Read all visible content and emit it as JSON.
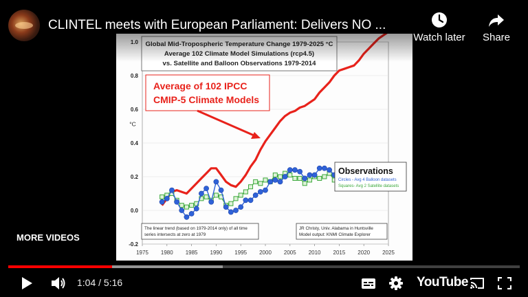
{
  "header": {
    "title": "CLINTEL meets with European Parliament: Delivers NO ...",
    "watch_later_label": "Watch later",
    "share_label": "Share",
    "avatar_icon": "channel-avatar"
  },
  "slide": {
    "heading_lines": [
      "Global Mid-Tropospheric Temperature Change 1979-2025 °C",
      "Average 102 Climate Model Simulations (rcp4.5)",
      "vs. Satellite and Balloon Observations 1979-2014"
    ],
    "callout_lines": [
      "Average of 102 IPCC",
      "CMIP-5 Climate Models"
    ],
    "callout_color": "#e8221b",
    "observations_title": "Observations",
    "circles_note": "Circles - Avg 4 Balloon datasets",
    "squares_note": "Squares- Avg 2 Satellite datasets",
    "trend_note_lines": [
      "The linear trend (based on 1979-2014 only) of all time",
      "series intersects at zero at 1979"
    ],
    "credit_lines": [
      "JR Christy, Univ. Alabama in Huntsville",
      "Model output: KNMI Climate Explorer"
    ]
  },
  "chart_data": {
    "type": "line",
    "ylabel": "°C",
    "xlim": [
      1975,
      2025
    ],
    "ylim": [
      -0.2,
      1.0
    ],
    "x_ticks": [
      "1975",
      "1980",
      "1985",
      "1990",
      "1995",
      "2000",
      "2005",
      "2010",
      "2015",
      "2020",
      "2025"
    ],
    "y_ticks": [
      "1.0",
      "0.8",
      "0.6",
      "0.4",
      "0.2",
      "0.0",
      "-0.2"
    ],
    "series": [
      {
        "color": "#e8221b",
        "x": [
          1979,
          1980,
          1981,
          1982,
          1983,
          1984,
          1985,
          1986,
          1987,
          1988,
          1989,
          1990,
          1991,
          1992,
          1993,
          1994,
          1995,
          1996,
          1997,
          1998,
          1999,
          2000,
          2001,
          2002,
          2003,
          2004,
          2005,
          2006,
          2007,
          2008,
          2009,
          2010,
          2011,
          2012,
          2013,
          2014,
          2015,
          2016,
          2017,
          2018,
          2019,
          2020,
          2021,
          2022,
          2023,
          2024,
          2025
        ],
        "values": [
          0.03,
          0.07,
          0.11,
          0.12,
          0.11,
          0.1,
          0.13,
          0.16,
          0.19,
          0.22,
          0.25,
          0.25,
          0.21,
          0.17,
          0.15,
          0.14,
          0.17,
          0.21,
          0.26,
          0.3,
          0.36,
          0.41,
          0.45,
          0.49,
          0.53,
          0.56,
          0.58,
          0.59,
          0.61,
          0.62,
          0.64,
          0.66,
          0.7,
          0.73,
          0.76,
          0.8,
          0.83,
          0.84,
          0.85,
          0.86,
          0.89,
          0.93,
          0.96,
          0.99,
          1.02,
          1.04,
          1.06
        ]
      },
      {
        "name": "Circles - Avg 4 Balloon datasets",
        "color": "#2f62d8",
        "x": [
          1979,
          1980,
          1981,
          1982,
          1983,
          1984,
          1985,
          1986,
          1987,
          1988,
          1989,
          1990,
          1991,
          1992,
          1993,
          1994,
          1995,
          1996,
          1997,
          1998,
          1999,
          2000,
          2001,
          2002,
          2003,
          2004,
          2005,
          2006,
          2007,
          2008,
          2009,
          2010,
          2011,
          2012,
          2013,
          2014,
          2015
        ],
        "values": [
          0.05,
          0.07,
          0.12,
          0.05,
          0.0,
          -0.04,
          -0.02,
          0.01,
          0.1,
          0.13,
          0.05,
          0.17,
          0.12,
          0.02,
          -0.01,
          0.0,
          0.02,
          0.06,
          0.06,
          0.09,
          0.11,
          0.12,
          0.17,
          0.18,
          0.17,
          0.2,
          0.24,
          0.24,
          0.23,
          0.19,
          0.21,
          0.21,
          0.25,
          0.25,
          0.24,
          0.21,
          0.2
        ]
      },
      {
        "name": "Squares- Avg 2 Satellite datasets",
        "color": "#3aa83a",
        "x": [
          1979,
          1980,
          1981,
          1982,
          1983,
          1984,
          1985,
          1986,
          1987,
          1988,
          1989,
          1990,
          1991,
          1992,
          1993,
          1994,
          1995,
          1996,
          1997,
          1998,
          1999,
          2000,
          2001,
          2002,
          2003,
          2004,
          2005,
          2006,
          2007,
          2008,
          2009,
          2010,
          2011,
          2012,
          2013,
          2014
        ],
        "values": [
          0.08,
          0.09,
          0.1,
          0.06,
          0.03,
          0.02,
          0.03,
          0.04,
          0.07,
          0.08,
          0.06,
          0.09,
          0.08,
          0.03,
          0.04,
          0.07,
          0.09,
          0.11,
          0.14,
          0.17,
          0.16,
          0.18,
          0.17,
          0.21,
          0.2,
          0.22,
          0.21,
          0.19,
          0.19,
          0.16,
          0.18,
          0.2,
          0.19,
          0.2,
          0.22,
          0.18
        ]
      }
    ]
  },
  "player": {
    "current_time": "1:04",
    "separator": " / ",
    "duration": "5:16",
    "played_fraction": 0.2025,
    "logo_text": "YouTube",
    "more_videos_label": "MORE VIDEOS",
    "progress_color": "#ff0000"
  }
}
